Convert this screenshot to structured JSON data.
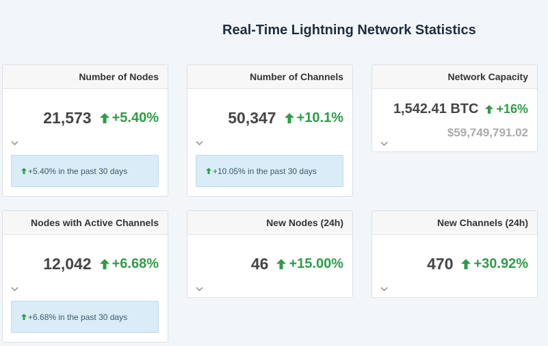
{
  "title": "Real-Time Lightning Network Statistics",
  "colors": {
    "positive": "#2e9c47",
    "muted": "#aaaaaa",
    "info_bg": "#d9ecf7"
  },
  "cards": {
    "nodes": {
      "header": "Number of Nodes",
      "value": "21,573",
      "change": "+5.40%",
      "note": "+5.40% in the past 30 days"
    },
    "channels": {
      "header": "Number of Channels",
      "value": "50,347",
      "change": "+10.1%",
      "note": "+10.05% in the past 30 days"
    },
    "capacity": {
      "header": "Network Capacity",
      "value": "1,542.41 BTC",
      "change": "+16%",
      "usd": "$59,749,791.02"
    },
    "active": {
      "header": "Nodes with Active Channels",
      "value": "12,042",
      "change": "+6.68%",
      "note": "+6.68% in the past 30 days"
    },
    "new_nodes": {
      "header": "New Nodes (24h)",
      "value": "46",
      "change": "+15.00%"
    },
    "new_channels": {
      "header": "New Channels (24h)",
      "value": "470",
      "change": "+30.92%"
    }
  }
}
